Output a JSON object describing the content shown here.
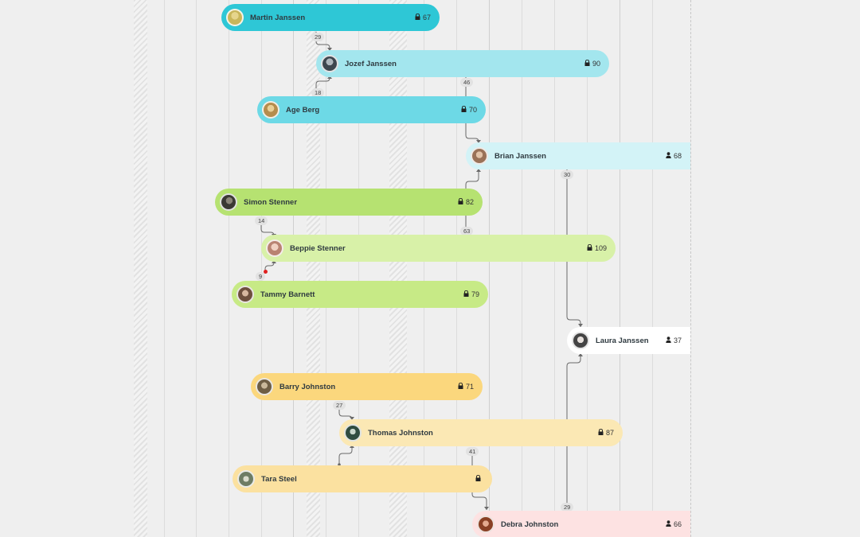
{
  "people": [
    {
      "id": "martin",
      "name": "Martin Janssen",
      "count": "67",
      "icon": "lock-icon",
      "color": "#2ec7d6",
      "avatar": "#c9b65a"
    },
    {
      "id": "jozef",
      "name": "Jozef Janssen",
      "count": "90",
      "icon": "lock-icon",
      "color": "#a3e6ee",
      "avatar": "#56606a"
    },
    {
      "id": "age",
      "name": "Age Berg",
      "count": "70",
      "icon": "lock-icon",
      "color": "#6dd9e6",
      "avatar": "#c8a76a"
    },
    {
      "id": "brian",
      "name": "Brian Janssen",
      "count": "68",
      "icon": "person-icon",
      "color": "#d3f3f7",
      "avatar": "#b68c72"
    },
    {
      "id": "simon",
      "name": "Simon Stenner",
      "count": "82",
      "icon": "lock-icon",
      "color": "#b6e271",
      "avatar": "#4d4a44"
    },
    {
      "id": "beppie",
      "name": "Beppie Stenner",
      "count": "109",
      "icon": "lock-icon",
      "color": "#d8f1a8",
      "avatar": "#c9a08e"
    },
    {
      "id": "tammy",
      "name": "Tammy Barnett",
      "count": "79",
      "icon": "lock-icon",
      "color": "#c7ea86",
      "avatar": "#8a6b5a"
    },
    {
      "id": "laura",
      "name": "Laura Janssen",
      "count": "37",
      "icon": "person-icon",
      "color": "#ffffff",
      "avatar": "#6e6e6e"
    },
    {
      "id": "barry",
      "name": "Barry Johnston",
      "count": "71",
      "icon": "lock-icon",
      "color": "#fbd77d",
      "avatar": "#8c7a5e"
    },
    {
      "id": "thomas",
      "name": "Thomas Johnston",
      "count": "87",
      "icon": "lock-icon",
      "color": "#fbe8b4",
      "avatar": "#3f5e52"
    },
    {
      "id": "tara",
      "name": "Tara Steel",
      "count": "",
      "icon": "lock-icon",
      "color": "#fbe1a0",
      "avatar": "#7a8a72"
    },
    {
      "id": "debra",
      "name": "Debra Johnston",
      "count": "66",
      "icon": "person-icon",
      "color": "#fde2e2",
      "avatar": "#a0583e"
    }
  ],
  "link_labels": {
    "martin_jozef": "29",
    "age_jozef": "18",
    "jozef_brian": "46",
    "brian_laura": "30",
    "simon_beppie": "14",
    "simon_brian": "63",
    "tammy_beppie": "9",
    "laura_debra": "29",
    "barry_thomas": "27",
    "thomas_debra": "41"
  }
}
